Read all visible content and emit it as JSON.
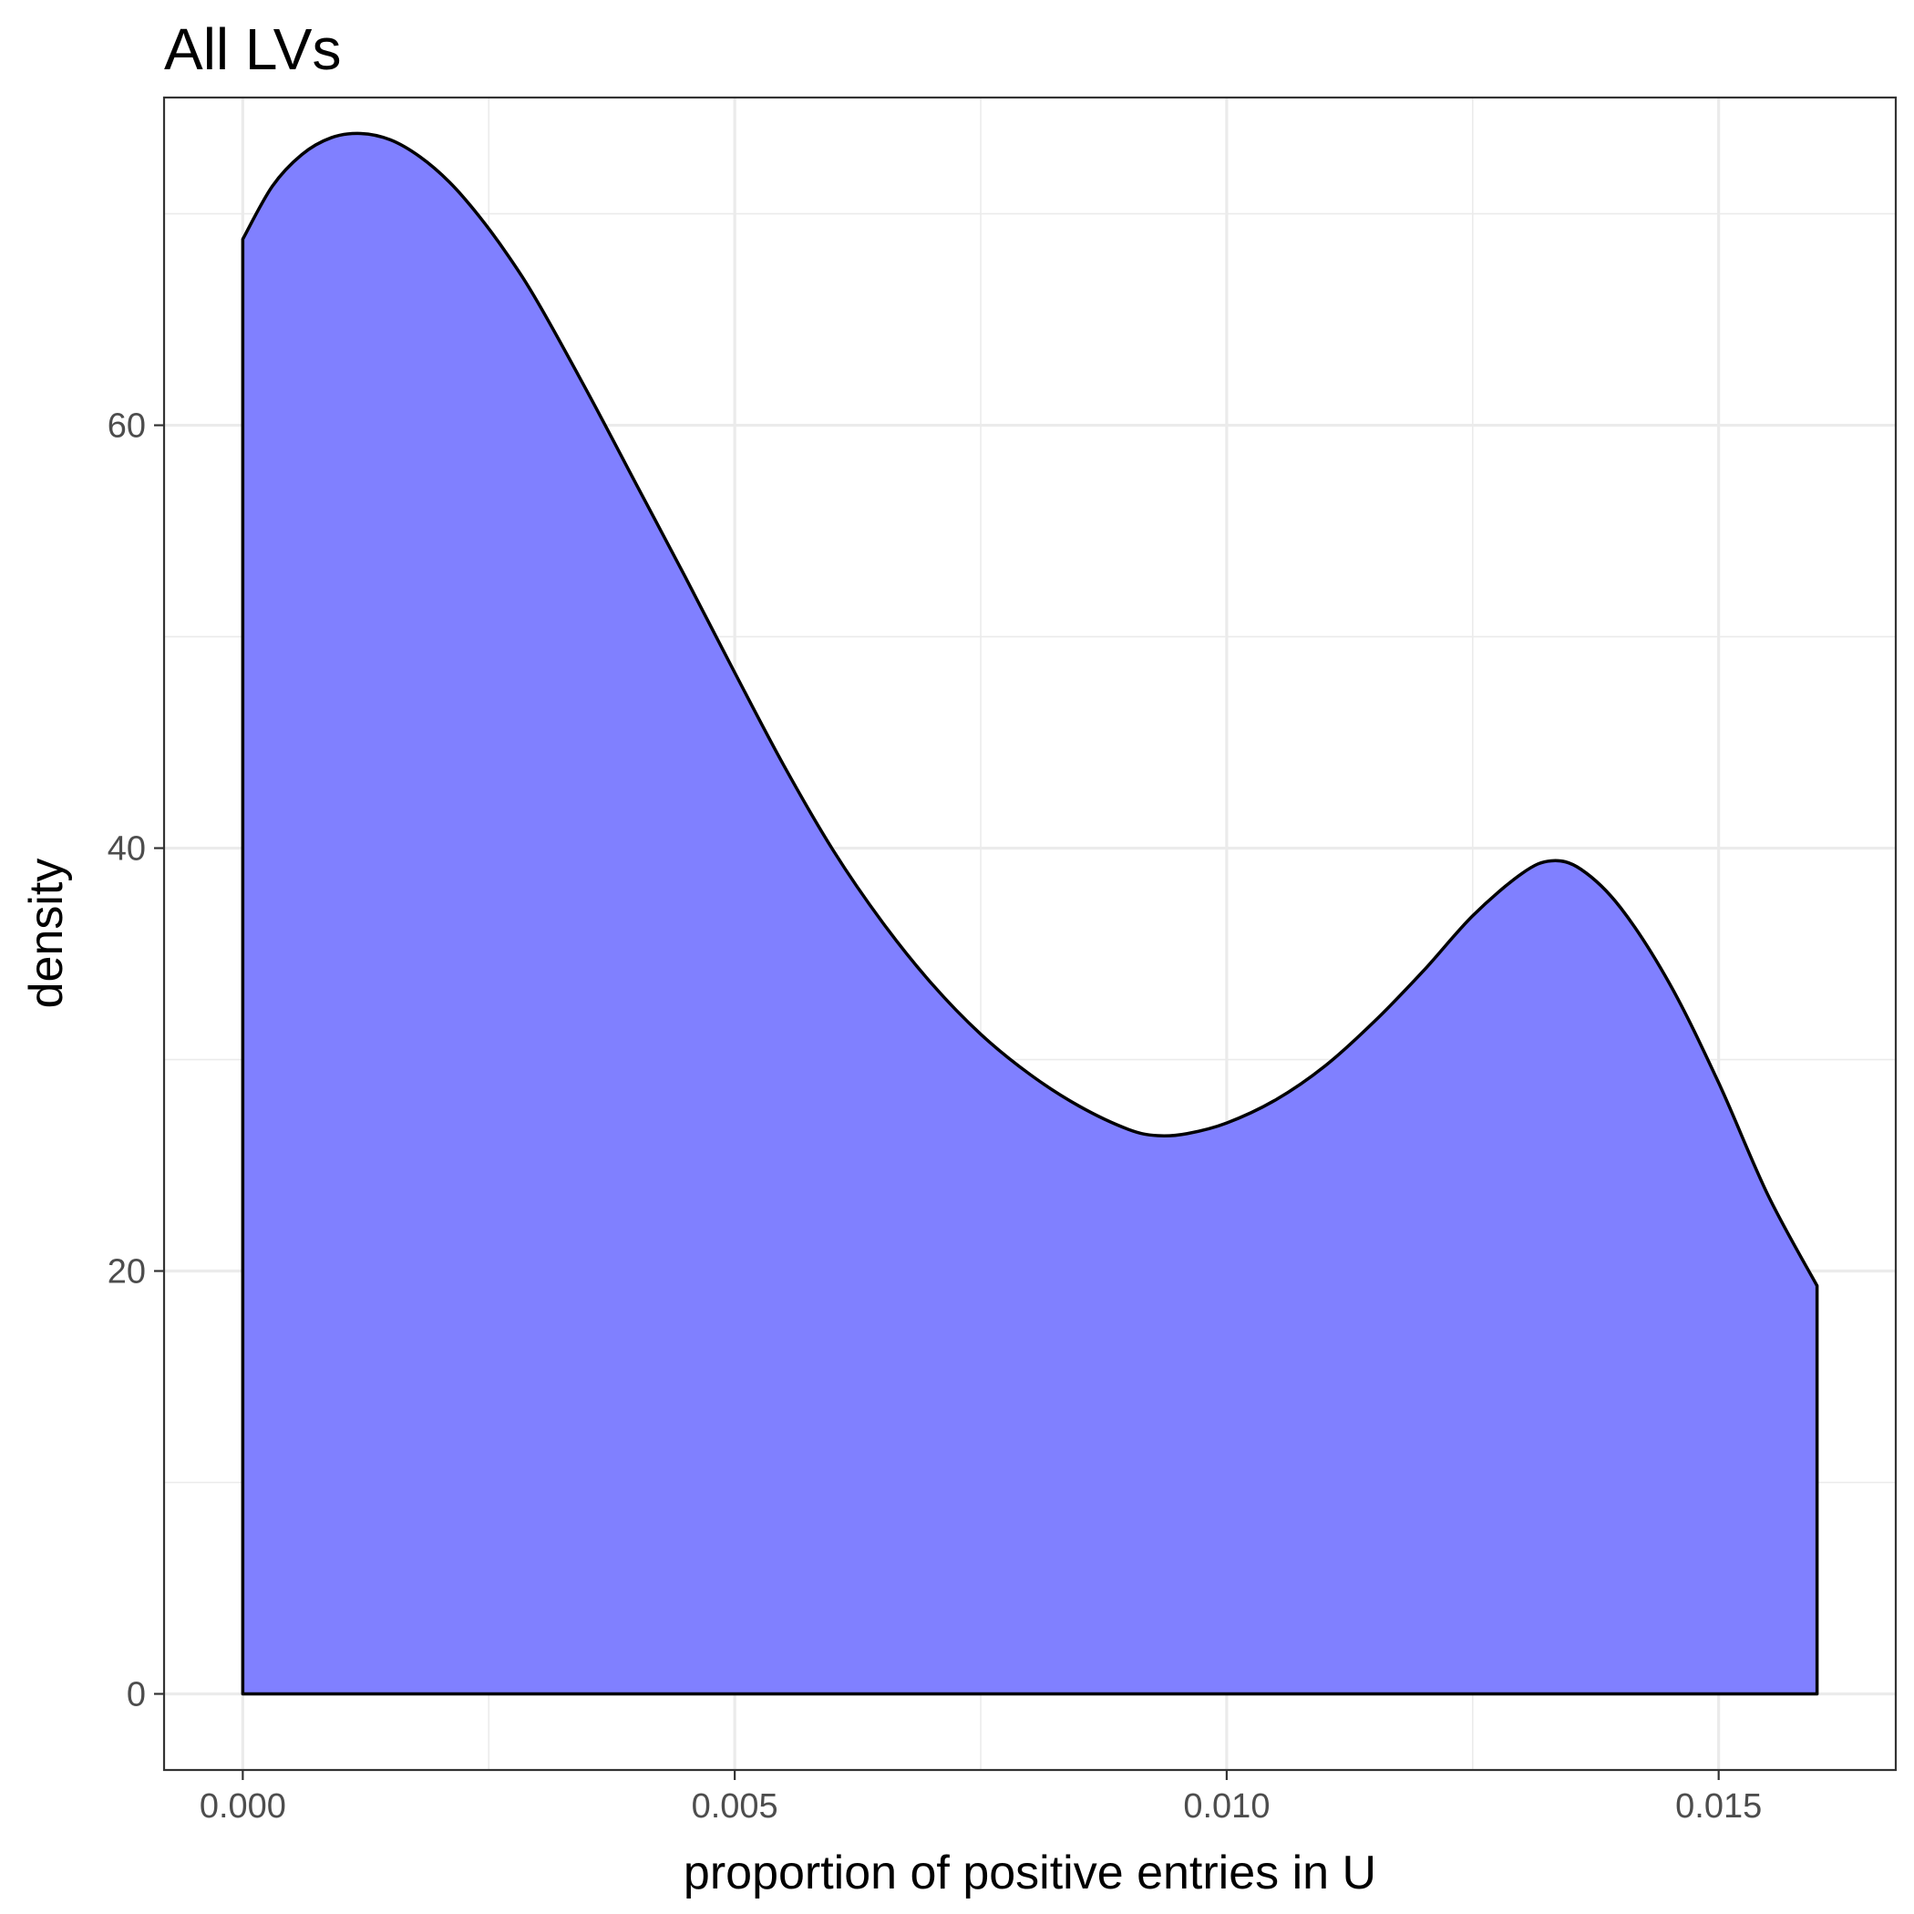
{
  "chart_data": {
    "type": "area",
    "title": "All LVs",
    "xlabel": "proportion of positive entries in U",
    "ylabel": "density",
    "xlim": [
      -0.0008,
      0.0168
    ],
    "ylim": [
      -3.6,
      75.5
    ],
    "x_ticks": [
      0.0,
      0.005,
      0.01,
      0.015
    ],
    "x_tick_labels": [
      "0.000",
      "0.005",
      "0.010",
      "0.015"
    ],
    "y_ticks": [
      0,
      20,
      40,
      60
    ],
    "y_tick_labels": [
      "0",
      "20",
      "40",
      "60"
    ],
    "x_minor_ticks": [
      0.0025,
      0.0075,
      0.0125
    ],
    "y_minor_ticks": [
      10,
      30,
      50,
      70
    ],
    "grid": true,
    "theme": "bw",
    "fill_color": "#8080ff",
    "line_color": "#000000",
    "series": [
      {
        "x": [
          0.0,
          0.0003,
          0.0006,
          0.0009,
          0.0012,
          0.0015,
          0.0018,
          0.0021,
          0.0024,
          0.0027,
          0.003,
          0.0035,
          0.004,
          0.0045,
          0.005,
          0.0055,
          0.006,
          0.0065,
          0.007,
          0.0075,
          0.008,
          0.0085,
          0.009,
          0.0093,
          0.0096,
          0.01,
          0.0105,
          0.011,
          0.0115,
          0.012,
          0.0125,
          0.013,
          0.0133,
          0.0136,
          0.014,
          0.0145,
          0.015,
          0.0155,
          0.016
        ],
        "y": [
          68.8,
          71.3,
          72.8,
          73.6,
          73.8,
          73.5,
          72.7,
          71.5,
          69.9,
          68.0,
          65.8,
          61.6,
          57.2,
          52.8,
          48.3,
          43.9,
          39.9,
          36.5,
          33.6,
          31.2,
          29.3,
          27.8,
          26.7,
          26.4,
          26.5,
          27.0,
          28.1,
          29.7,
          31.8,
          34.2,
          36.8,
          38.8,
          39.4,
          39.0,
          37.2,
          33.6,
          28.9,
          23.6,
          19.3
        ]
      }
    ]
  }
}
